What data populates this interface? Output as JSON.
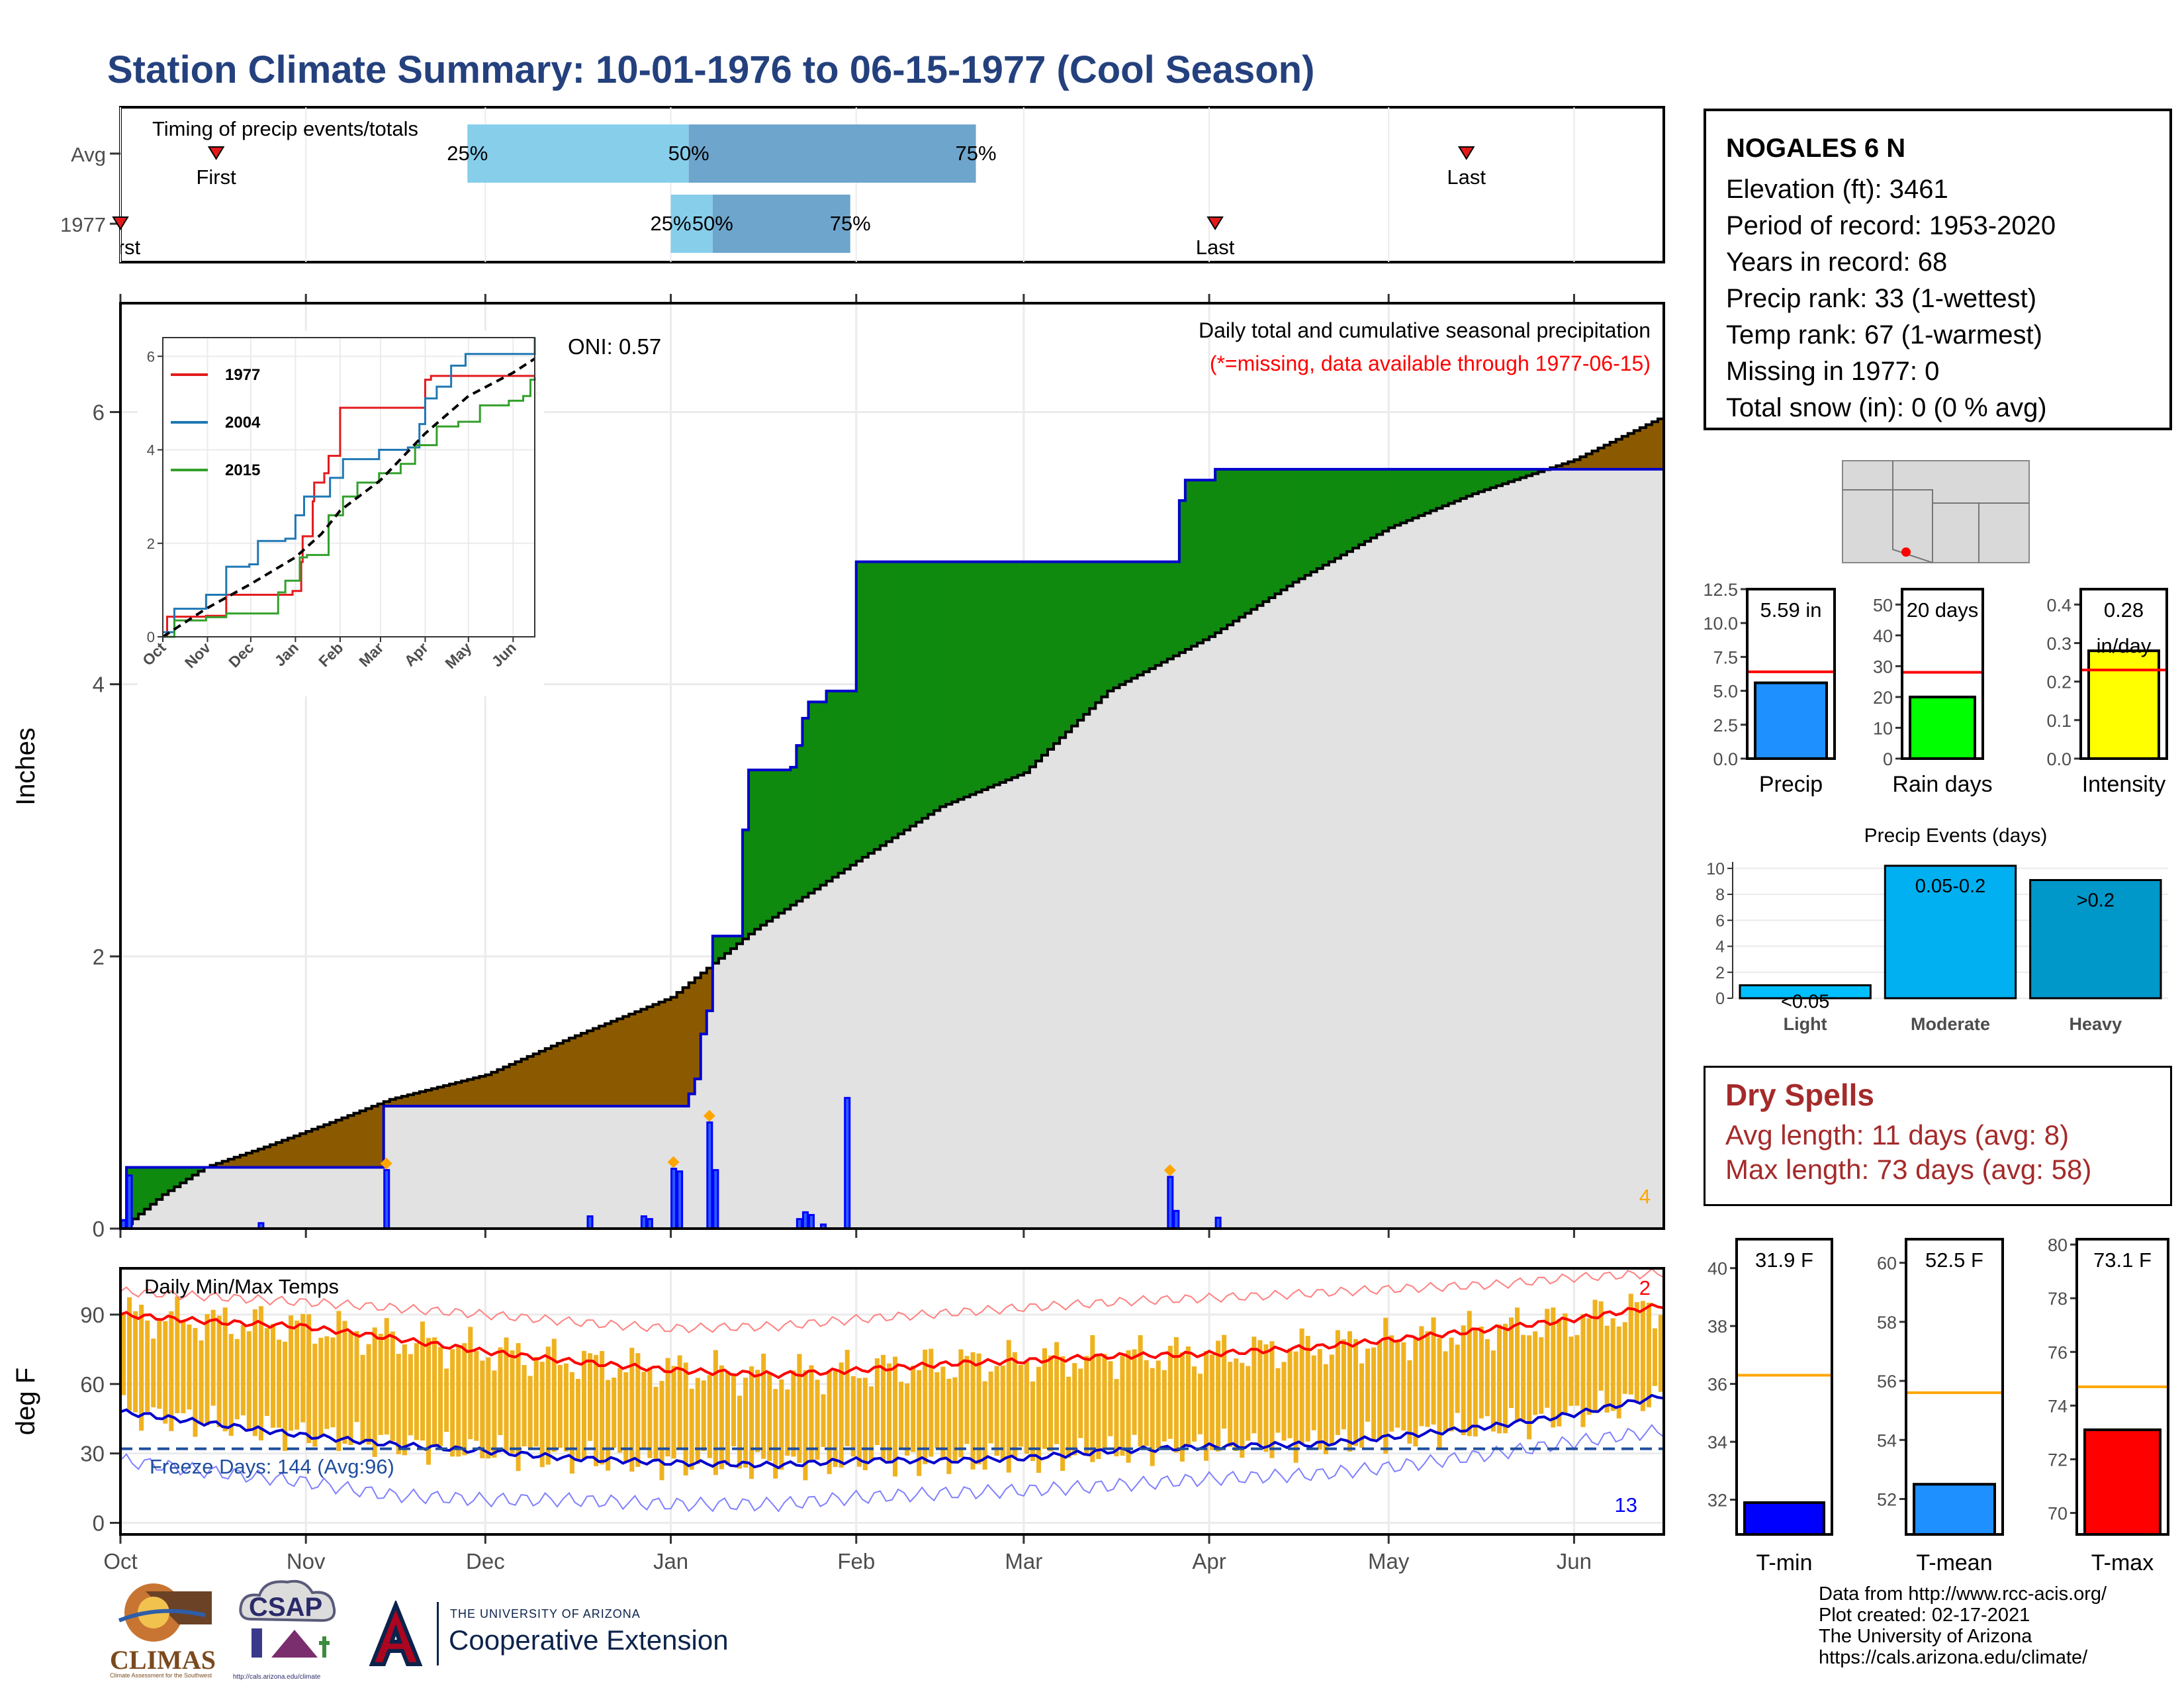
{
  "header": {
    "title": "Station Climate Summary: 10-01-1976 to 06-15-1977 (Cool Season)"
  },
  "timing": {
    "label": "Timing of precip events/totals",
    "rows": [
      {
        "name": "Avg",
        "first_label": "First",
        "last_label": "Last",
        "first": "1976-10-17",
        "last": "1977-05-14",
        "p25": "1976-11-28",
        "p50": "1977-01-04",
        "p75": "1977-02-21"
      },
      {
        "name": "1977",
        "first_label": "First",
        "last_label": "Last",
        "first": "1976-10-01",
        "last": "1977-04-02",
        "p25": "1977-01-01",
        "p50": "1977-01-08",
        "p75": "1977-01-31"
      }
    ],
    "pct_labels": [
      "25%",
      "50%",
      "75%"
    ],
    "colors": {
      "q1": "#87ceeb",
      "q2": "#6ea5cc",
      "marker": "#e31a1c"
    }
  },
  "chart_data": [
    {
      "name": "main",
      "type": "area",
      "title": "Daily total and cumulative seasonal precipitation",
      "subtitle": "(*=missing, data available through 1977-06-15)",
      "ylabel": "Inches",
      "oni": "ONI: 0.57",
      "ylim": [
        0,
        6.8
      ],
      "yticks": [
        "0",
        "2",
        "4",
        "6"
      ],
      "x_start": "1976-10-01",
      "x_end": "1977-06-15",
      "month_labels": [
        "Oct",
        "Nov",
        "Dec",
        "Jan",
        "Feb",
        "Mar",
        "Apr",
        "May",
        "Jun"
      ],
      "avg_cumulative": [
        [
          "1976-10-01",
          0.0
        ],
        [
          "1976-10-08",
          0.25
        ],
        [
          "1976-10-15",
          0.45
        ],
        [
          "1976-10-25",
          0.6
        ],
        [
          "1976-11-05",
          0.78
        ],
        [
          "1976-11-15",
          0.95
        ],
        [
          "1976-12-01",
          1.13
        ],
        [
          "1976-12-15",
          1.4
        ],
        [
          "1977-01-01",
          1.7
        ],
        [
          "1977-01-15",
          2.2
        ],
        [
          "1977-02-01",
          2.7
        ],
        [
          "1977-02-15",
          3.1
        ],
        [
          "1977-03-01",
          3.35
        ],
        [
          "1977-03-15",
          3.95
        ],
        [
          "1977-04-01",
          4.35
        ],
        [
          "1977-04-15",
          4.75
        ],
        [
          "1977-05-01",
          5.15
        ],
        [
          "1977-05-15",
          5.4
        ],
        [
          "1977-06-01",
          5.65
        ],
        [
          "1977-06-15",
          5.95
        ]
      ],
      "obs_cumulative": [
        [
          "1976-10-01",
          0.06
        ],
        [
          "1976-10-02",
          0.45
        ],
        [
          "1976-11-14",
          0.9
        ],
        [
          "1977-01-04",
          0.99
        ],
        [
          "1977-01-05",
          1.1
        ],
        [
          "1977-01-06",
          1.43
        ],
        [
          "1977-01-07",
          1.6
        ],
        [
          "1977-01-08",
          2.15
        ],
        [
          "1977-01-13",
          2.93
        ],
        [
          "1977-01-14",
          3.37
        ],
        [
          "1977-01-21",
          3.39
        ],
        [
          "1977-01-22",
          3.55
        ],
        [
          "1977-01-23",
          3.75
        ],
        [
          "1977-01-24",
          3.87
        ],
        [
          "1977-01-27",
          3.95
        ],
        [
          "1977-02-01",
          4.9
        ],
        [
          "1977-03-27",
          5.35
        ],
        [
          "1977-03-28",
          5.5
        ],
        [
          "1977-04-02",
          5.58
        ],
        [
          "1977-06-15",
          5.58
        ]
      ],
      "daily_values": [
        [
          "1976-10-01",
          0.06
        ],
        [
          "1976-10-02",
          0.39
        ],
        [
          "1976-10-24",
          0.04
        ],
        [
          "1976-11-14",
          0.43
        ],
        [
          "1976-12-18",
          0.09
        ],
        [
          "1976-12-27",
          0.09
        ],
        [
          "1976-12-28",
          0.07
        ],
        [
          "1977-01-01",
          0.44
        ],
        [
          "1977-01-02",
          0.42
        ],
        [
          "1977-01-07",
          0.78
        ],
        [
          "1977-01-08",
          0.43
        ],
        [
          "1977-01-22",
          0.07
        ],
        [
          "1977-01-23",
          0.12
        ],
        [
          "1977-01-24",
          0.1
        ],
        [
          "1977-01-26",
          0.03
        ],
        [
          "1977-01-30",
          0.96
        ],
        [
          "1977-03-25",
          0.38
        ],
        [
          "1977-03-26",
          0.13
        ],
        [
          "1977-04-02",
          0.08
        ]
      ],
      "flagged_days": [
        "1976-11-14",
        "1977-01-01",
        "1977-01-07",
        "1977-03-25"
      ],
      "flag_count": "4",
      "colors": {
        "deficit": "#8b5a00",
        "surplus": "#0f8a0f",
        "observed": "#0000cd",
        "bar": "#0000ff",
        "avg_fill": "#e2e2e2",
        "flag": "#ffa500"
      }
    },
    {
      "name": "inset",
      "type": "line",
      "ylim": [
        0,
        6.4
      ],
      "yticks": [
        "0",
        "2",
        "4",
        "6"
      ],
      "month_labels": [
        "Oct",
        "Nov",
        "Dec",
        "Jan",
        "Feb",
        "Mar",
        "Apr",
        "May",
        "Jun"
      ],
      "series": [
        {
          "name": "1977",
          "color": "#e31a1c",
          "values": [
            [
              0,
              0
            ],
            [
              3,
              0.43
            ],
            [
              30,
              0.45
            ],
            [
              44,
              0.9
            ],
            [
              50,
              0.9
            ],
            [
              90,
              0.98
            ],
            [
              96,
              1.6
            ],
            [
              97,
              2.15
            ],
            [
              104,
              2.9
            ],
            [
              105,
              3.3
            ],
            [
              112,
              3.5
            ],
            [
              115,
              3.87
            ],
            [
              123,
              4.9
            ],
            [
              178,
              4.9
            ],
            [
              182,
              5.5
            ],
            [
              186,
              5.58
            ],
            [
              258,
              5.58
            ]
          ]
        },
        {
          "name": "2004",
          "color": "#1f78b4",
          "values": [
            [
              0,
              0.1
            ],
            [
              8,
              0.6
            ],
            [
              30,
              0.9
            ],
            [
              44,
              1.5
            ],
            [
              60,
              1.55
            ],
            [
              66,
              2.05
            ],
            [
              85,
              2.1
            ],
            [
              92,
              2.6
            ],
            [
              98,
              3.0
            ],
            [
              116,
              3.4
            ],
            [
              125,
              3.8
            ],
            [
              150,
              4.0
            ],
            [
              170,
              4.05
            ],
            [
              178,
              4.55
            ],
            [
              182,
              5.1
            ],
            [
              190,
              5.35
            ],
            [
              200,
              5.8
            ],
            [
              210,
              6.05
            ],
            [
              258,
              6.4
            ]
          ]
        },
        {
          "name": "2015",
          "color": "#33a02c",
          "values": [
            [
              0,
              0
            ],
            [
              8,
              0.35
            ],
            [
              30,
              0.42
            ],
            [
              44,
              0.5
            ],
            [
              70,
              0.5
            ],
            [
              80,
              0.95
            ],
            [
              85,
              1.2
            ],
            [
              95,
              1.7
            ],
            [
              100,
              1.75
            ],
            [
              115,
              2.6
            ],
            [
              125,
              3.0
            ],
            [
              135,
              3.3
            ],
            [
              150,
              3.5
            ],
            [
              165,
              3.7
            ],
            [
              175,
              4.1
            ],
            [
              190,
              4.5
            ],
            [
              205,
              4.6
            ],
            [
              220,
              4.95
            ],
            [
              240,
              5.05
            ],
            [
              250,
              5.15
            ],
            [
              255,
              5.5
            ],
            [
              258,
              5.55
            ]
          ]
        },
        {
          "name": "Avg",
          "color": "#000000",
          "dashed": true,
          "values": [
            [
              0,
              0
            ],
            [
              30,
              0.6
            ],
            [
              61,
              1.13
            ],
            [
              92,
              1.7
            ],
            [
              110,
              2.2
            ],
            [
              123,
              2.7
            ],
            [
              151,
              3.35
            ],
            [
              182,
              4.35
            ],
            [
              212,
              5.15
            ],
            [
              243,
              5.65
            ],
            [
              258,
              5.95
            ]
          ]
        }
      ]
    },
    {
      "name": "temps",
      "type": "line",
      "title": "Daily Min/Max Temps",
      "ylabel": "deg F",
      "ylim": [
        -5,
        110
      ],
      "yticks": [
        "0",
        "30",
        "60",
        "90"
      ],
      "freeze_label": "Freeze Days: 144 (Avg:96)",
      "freeze_line": 32,
      "count_top": "2",
      "count_bottom": "13",
      "avg_max_points": [
        [
          0,
          90
        ],
        [
          15,
          87
        ],
        [
          30,
          85
        ],
        [
          45,
          80
        ],
        [
          61,
          74
        ],
        [
          75,
          70
        ],
        [
          92,
          66
        ],
        [
          110,
          64
        ],
        [
          123,
          66
        ],
        [
          140,
          69
        ],
        [
          151,
          70
        ],
        [
          165,
          72
        ],
        [
          182,
          73
        ],
        [
          200,
          76
        ],
        [
          212,
          79
        ],
        [
          230,
          84
        ],
        [
          243,
          88
        ],
        [
          258,
          94
        ]
      ],
      "avg_min_points": [
        [
          0,
          48
        ],
        [
          15,
          43
        ],
        [
          30,
          38
        ],
        [
          45,
          34
        ],
        [
          61,
          31
        ],
        [
          75,
          28
        ],
        [
          92,
          26
        ],
        [
          110,
          25
        ],
        [
          123,
          27
        ],
        [
          140,
          27
        ],
        [
          151,
          28
        ],
        [
          165,
          31
        ],
        [
          182,
          33
        ],
        [
          200,
          34
        ],
        [
          212,
          37
        ],
        [
          230,
          42
        ],
        [
          243,
          47
        ],
        [
          258,
          55
        ]
      ],
      "rec_max_points": [
        [
          0,
          100
        ],
        [
          20,
          97
        ],
        [
          40,
          94
        ],
        [
          61,
          90
        ],
        [
          80,
          86
        ],
        [
          92,
          84
        ],
        [
          110,
          85
        ],
        [
          123,
          88
        ],
        [
          140,
          91
        ],
        [
          151,
          93
        ],
        [
          170,
          96
        ],
        [
          190,
          98
        ],
        [
          212,
          101
        ],
        [
          230,
          103
        ],
        [
          243,
          106
        ],
        [
          258,
          108
        ]
      ],
      "rec_min_points": [
        [
          0,
          27
        ],
        [
          15,
          22
        ],
        [
          30,
          18
        ],
        [
          45,
          12
        ],
        [
          61,
          10
        ],
        [
          75,
          10
        ],
        [
          92,
          8
        ],
        [
          110,
          8
        ],
        [
          123,
          11
        ],
        [
          140,
          13
        ],
        [
          151,
          14
        ],
        [
          165,
          16
        ],
        [
          182,
          19
        ],
        [
          200,
          21
        ],
        [
          212,
          24
        ],
        [
          230,
          30
        ],
        [
          243,
          35
        ],
        [
          258,
          40
        ]
      ],
      "colors": {
        "range": "#efb21f",
        "avg_max": "#ff0000",
        "avg_min": "#0000cd",
        "rec": "#ff8080",
        "rec_min": "#8080ff",
        "freeze": "#1f4e9e"
      }
    },
    {
      "name": "precip_total",
      "type": "bar",
      "categories": [
        "Precip"
      ],
      "values": [
        5.59
      ],
      "avg": 6.4,
      "ylim": [
        0,
        12.5
      ],
      "yticks": [
        "0.0",
        "2.5",
        "5.0",
        "7.5",
        "10.0",
        "12.5"
      ],
      "value_label": "5.59 in",
      "color": "#1e90ff"
    },
    {
      "name": "rain_days",
      "type": "bar",
      "categories": [
        "Rain days"
      ],
      "values": [
        20
      ],
      "avg": 28,
      "ylim": [
        0,
        55
      ],
      "yticks": [
        "0",
        "10",
        "20",
        "30",
        "40",
        "50"
      ],
      "value_label": "20 days",
      "color": "#00ff00"
    },
    {
      "name": "intensity",
      "type": "bar",
      "categories": [
        "Intensity"
      ],
      "values": [
        0.28
      ],
      "avg": 0.23,
      "ylim": [
        0,
        0.44
      ],
      "yticks": [
        "0.0",
        "0.1",
        "0.2",
        "0.3",
        "0.4"
      ],
      "value_label": "0.28\nin/day",
      "color": "#ffff00"
    },
    {
      "name": "precip_events",
      "type": "bar",
      "title": "Precip Events (days)",
      "categories": [
        "Light",
        "Moderate",
        "Heavy"
      ],
      "values": [
        1,
        10.2,
        9.1
      ],
      "bar_labels": [
        "<0.05",
        "0.05-0.2",
        ">0.2"
      ],
      "ylim": [
        0,
        10.5
      ],
      "yticks": [
        "0",
        "2",
        "4",
        "6",
        "8",
        "10"
      ],
      "colors": [
        "#00bfff",
        "#00b0f0",
        "#0097c9"
      ]
    },
    {
      "name": "tmin",
      "type": "bar",
      "categories": [
        "T-min"
      ],
      "values": [
        31.9
      ],
      "avg": 36.3,
      "ylim": [
        30.8,
        41
      ],
      "yticks": [
        "32",
        "34",
        "36",
        "38",
        "40"
      ],
      "value_label": "31.9 F",
      "color": "#0000ff"
    },
    {
      "name": "tmean",
      "type": "bar",
      "categories": [
        "T-mean"
      ],
      "values": [
        52.5
      ],
      "avg": 55.6,
      "ylim": [
        50.8,
        60.8
      ],
      "yticks": [
        "52",
        "54",
        "56",
        "58",
        "60"
      ],
      "value_label": "52.5 F",
      "color": "#1e90ff"
    },
    {
      "name": "tmax",
      "type": "bar",
      "categories": [
        "T-max"
      ],
      "values": [
        73.1
      ],
      "avg": 74.7,
      "ylim": [
        69.2,
        80.2
      ],
      "yticks": [
        "70",
        "72",
        "74",
        "76",
        "78",
        "80"
      ],
      "value_label": "73.1 F",
      "color": "#ff0000"
    }
  ],
  "station": {
    "name": "NOGALES 6 N",
    "lines": [
      "Elevation (ft): 3461",
      "Period of record: 1953-2020",
      "Years in record: 68",
      "Precip rank: 33 (1-wettest)",
      "Temp rank: 67 (1-warmest)",
      "Missing in 1977: 0",
      "Total snow (in): 0 (0 % avg)"
    ]
  },
  "dry_spells": {
    "title": "Dry Spells",
    "avg_line": "Avg length: 11 days (avg: 8)",
    "max_line": "Max length: 73 days (avg: 58)"
  },
  "credits": {
    "lines": [
      "Data from http://www.rcc-acis.org/",
      "Plot created: 02-17-2021",
      "The University of Arizona",
      "https://cals.arizona.edu/climate/"
    ]
  },
  "logos": {
    "climas": "CLIMAS",
    "climas_sub": "Climate Assessment for the Southwest",
    "csap": "CSAP",
    "csap_url": "http://cals.arizona.edu/climate",
    "ua_org": "THE UNIVERSITY OF ARIZONA",
    "ua_unit": "Cooperative Extension"
  },
  "map_icon": "southwest-us-map-icon"
}
